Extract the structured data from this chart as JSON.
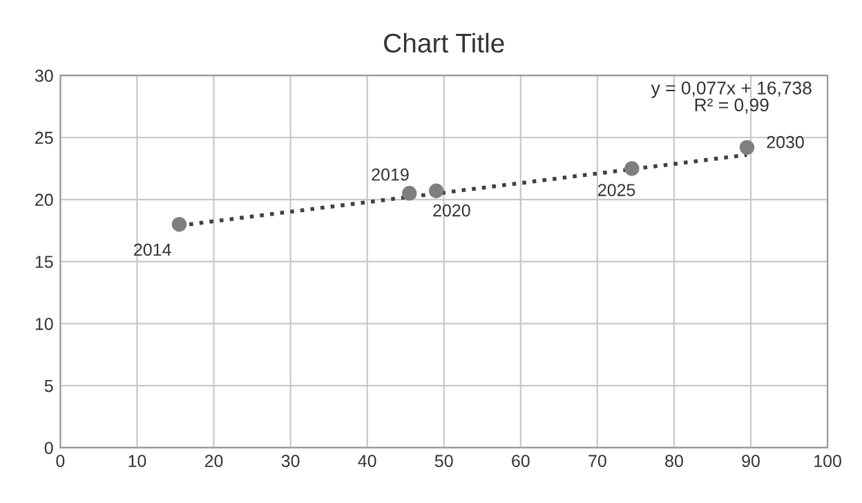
{
  "chart_data": {
    "type": "scatter",
    "title": "Chart Title",
    "series": [
      {
        "color": "#7f7f7f",
        "marker": "circle",
        "x": [
          15.5,
          45.5,
          49,
          74.5,
          89.5
        ],
        "values": [
          18,
          20.5,
          20.7,
          22.5,
          24.2
        ]
      },
      {
        "type": "line",
        "color": "#404040",
        "line_style": "dotted",
        "marker": "none",
        "x": [
          15.5,
          89.5
        ],
        "values": [
          17.9,
          23.6
        ]
      }
    ],
    "annotations": [
      {
        "text": "2014",
        "x": 15.5,
        "y": 18
      },
      {
        "text": "2019",
        "x": 45.5,
        "y": 20.5
      },
      {
        "text": "2020",
        "x": 49,
        "y": 20.7
      },
      {
        "text": "2025",
        "x": 74.5,
        "y": 22.5
      },
      {
        "text": "2030",
        "x": 89.5,
        "y": 24.2
      },
      "y = 0,077x + 16,738\nR² = 0,99"
    ],
    "xlim": [
      0,
      100
    ],
    "xticks": [
      0,
      10,
      20,
      30,
      40,
      50,
      60,
      70,
      80,
      90,
      100
    ],
    "ylim": [
      0,
      30
    ],
    "yticks": [
      0,
      5,
      10,
      15,
      20,
      25,
      30
    ],
    "grid": true,
    "legend": false
  }
}
